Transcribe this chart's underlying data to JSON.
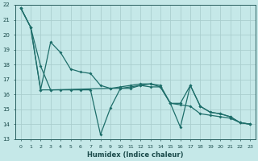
{
  "xlabel": "Humidex (Indice chaleur)",
  "bg_color": "#c5e8e8",
  "grid_color": "#aacece",
  "line_color": "#1e6e6a",
  "xlim": [
    -0.5,
    23.5
  ],
  "ylim": [
    13,
    22
  ],
  "xticks": [
    0,
    1,
    2,
    3,
    4,
    5,
    6,
    7,
    8,
    9,
    10,
    11,
    12,
    13,
    14,
    15,
    16,
    17,
    18,
    19,
    20,
    21,
    22,
    23
  ],
  "yticks": [
    13,
    14,
    15,
    16,
    17,
    18,
    19,
    20,
    21,
    22
  ],
  "series1_x": [
    0,
    1,
    2,
    3,
    4,
    5,
    6,
    7,
    8,
    9,
    10,
    11,
    12,
    13,
    14,
    15,
    16,
    17,
    18,
    19,
    20,
    21,
    22,
    23
  ],
  "series1_y": [
    21.8,
    20.5,
    16.3,
    19.5,
    18.8,
    17.7,
    17.5,
    17.4,
    16.6,
    16.4,
    16.4,
    16.5,
    16.6,
    16.5,
    16.5,
    15.4,
    15.3,
    15.2,
    14.7,
    14.6,
    14.5,
    14.4,
    14.1,
    14.0
  ],
  "series2_x": [
    0,
    1,
    2,
    3,
    4,
    5,
    6,
    7,
    8,
    9,
    10,
    11,
    12,
    13,
    14,
    15,
    16,
    17,
    18,
    19,
    20,
    21,
    22,
    23
  ],
  "series2_y": [
    21.8,
    20.5,
    17.9,
    16.3,
    16.3,
    16.3,
    16.3,
    16.3,
    13.3,
    15.1,
    16.4,
    16.4,
    16.6,
    16.7,
    16.6,
    15.4,
    13.8,
    16.6,
    15.2,
    14.8,
    14.7,
    14.5,
    14.1,
    14.0
  ],
  "series3_x": [
    0,
    1,
    2,
    3,
    9,
    10,
    11,
    12,
    13,
    14,
    15,
    16,
    17,
    18,
    19,
    20,
    21,
    22,
    23
  ],
  "series3_y": [
    21.8,
    20.5,
    16.3,
    16.3,
    16.4,
    16.5,
    16.6,
    16.7,
    16.7,
    16.5,
    15.4,
    15.4,
    16.6,
    15.2,
    14.8,
    14.7,
    14.5,
    14.1,
    14.0
  ]
}
